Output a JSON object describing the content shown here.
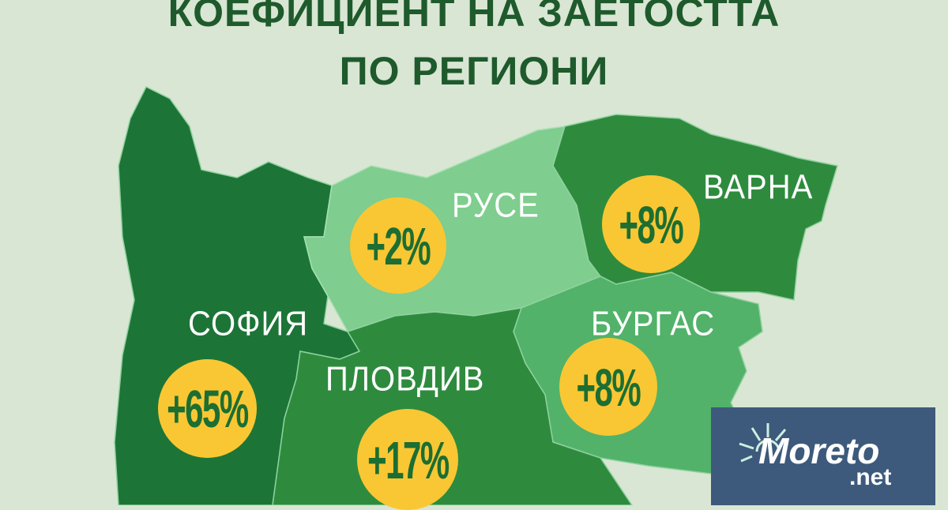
{
  "title": {
    "line1": "КОЕФИЦИЕНТ НА ЗАЕТОСТТА",
    "line2": "ПО РЕГИОНИ"
  },
  "colors": {
    "background": "#d9e6d3",
    "title": "#1e5a2c",
    "sofia": "#1c7537",
    "ruse": "#7fcd8f",
    "varna": "#2e8b3e",
    "burgas": "#52b26a",
    "plovdiv": "#2e8b3e",
    "badge": "#f9c733",
    "logo_bg": "#3d5a7c"
  },
  "regions": [
    {
      "name": "СОФИЯ",
      "value": "+65%"
    },
    {
      "name": "РУСЕ",
      "value": "+2%"
    },
    {
      "name": "ВАРНА",
      "value": "+8%"
    },
    {
      "name": "БУРГАС",
      "value": "+8%"
    },
    {
      "name": "ПЛОВДИВ",
      "value": "+17%"
    }
  ],
  "logo": {
    "text": "Moreto",
    "suffix": ".net",
    "icon": "sun-icon"
  }
}
